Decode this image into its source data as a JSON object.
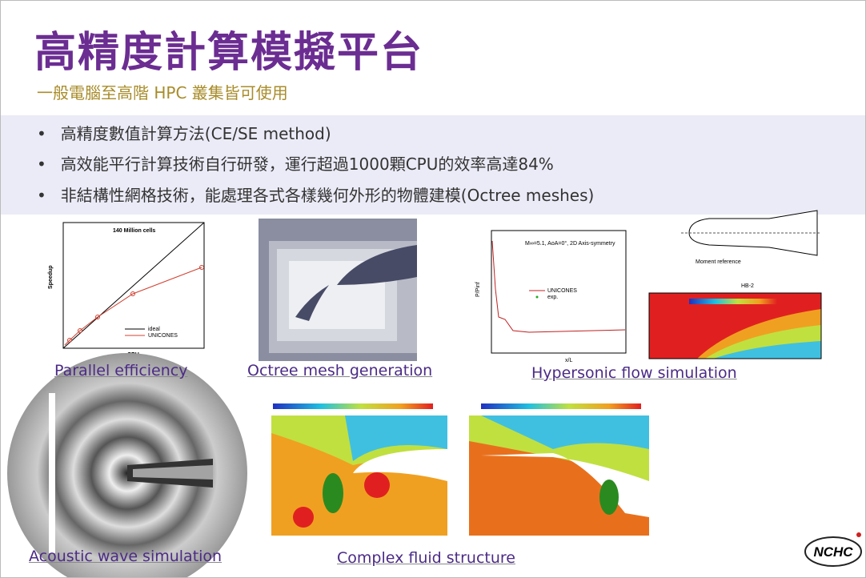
{
  "header": {
    "title": "高精度計算模擬平台",
    "subtitle": "一般電腦至高階 HPC 叢集皆可使用"
  },
  "bullets": [
    "高精度數值計算方法(CE/SE method)",
    "高效能平行計算技術自行研發，運行超過1000顆CPU的效率高達84%",
    "非結構性網格技術，能處理各式各樣幾何外形的物體建模(Octree meshes)"
  ],
  "figures": {
    "speedup": {
      "caption": "Parallel efficiency",
      "title": "140 Million cells",
      "ylabel": "Speedup",
      "xlabel": "CPU",
      "legend": [
        "ideal",
        "UNICONES"
      ]
    },
    "octree": {
      "caption": "Octree mesh generation"
    },
    "hypersonic": {
      "caption": "Hypersonic flow simulation",
      "title": "M∞=5.1, AoA=0°, 2D Axis-symmetry",
      "ylabel": "P/Pinf",
      "xlabel": "x/L",
      "legend": [
        "UNICONES",
        "exp."
      ],
      "model": "HB-2",
      "note": "Moment reference"
    },
    "acoustic": {
      "caption": "Acoustic wave simulation"
    },
    "fluid": {
      "caption": "Complex fluid structure"
    }
  },
  "logo": "NCHC"
}
